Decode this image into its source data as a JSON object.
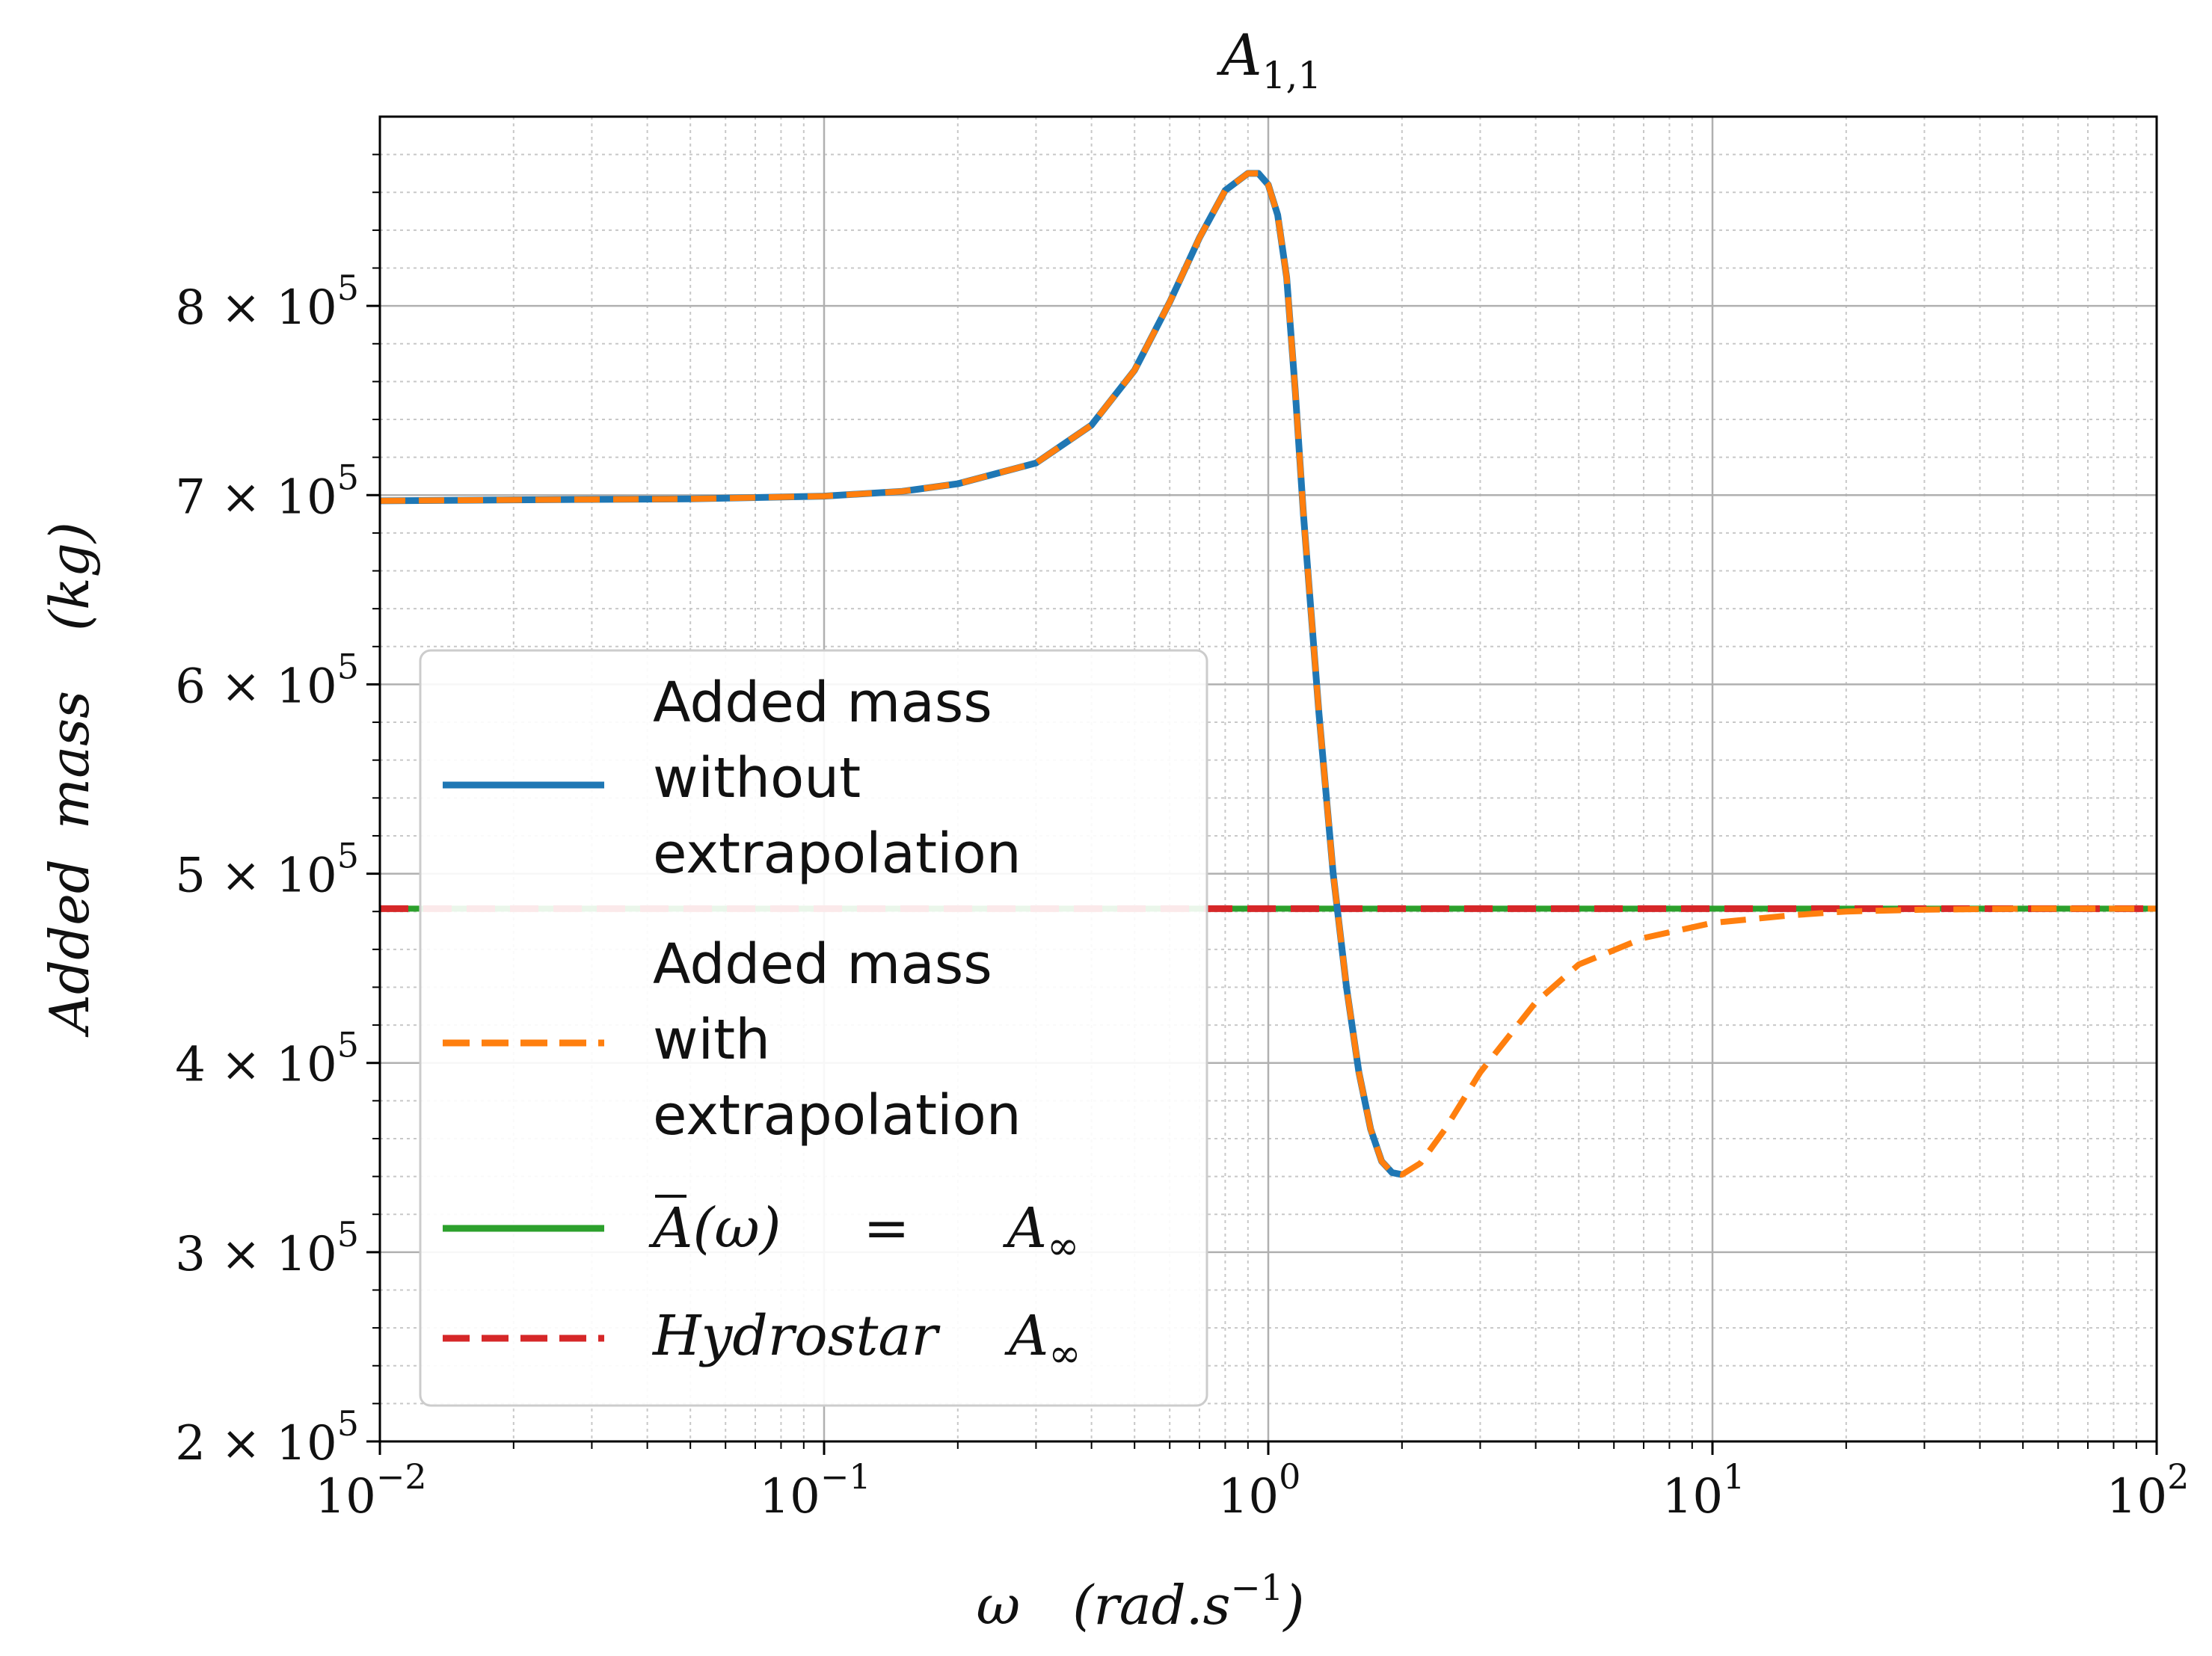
{
  "chart_data": {
    "type": "line",
    "title": {
      "base": "A",
      "sub": "1,1"
    },
    "xlabel": {
      "symbol": "ω",
      "unit": "(rad.s",
      "exp": "−1",
      "close": ")"
    },
    "ylabel": {
      "word1": "Added",
      "word2": "mass",
      "unit": "(kg)"
    },
    "xscale": "log",
    "xlim": [
      0.01,
      100
    ],
    "ylim": [
      200000,
      900000
    ],
    "grid": true,
    "legend_position": "center-left",
    "x_ticks": [
      {
        "value": 0.01,
        "base": "10",
        "exp": "−2"
      },
      {
        "value": 0.1,
        "base": "10",
        "exp": "−1"
      },
      {
        "value": 1,
        "base": "10",
        "exp": "0"
      },
      {
        "value": 10,
        "base": "10",
        "exp": "1"
      },
      {
        "value": 100,
        "base": "10",
        "exp": "2"
      }
    ],
    "y_ticks": [
      {
        "value": 200000,
        "mant": "2",
        "base": "10",
        "exp": "5"
      },
      {
        "value": 300000,
        "mant": "3",
        "base": "10",
        "exp": "5"
      },
      {
        "value": 400000,
        "mant": "4",
        "base": "10",
        "exp": "5"
      },
      {
        "value": 500000,
        "mant": "5",
        "base": "10",
        "exp": "5"
      },
      {
        "value": 600000,
        "mant": "6",
        "base": "10",
        "exp": "5"
      },
      {
        "value": 700000,
        "mant": "7",
        "base": "10",
        "exp": "5"
      },
      {
        "value": 800000,
        "mant": "8",
        "base": "10",
        "exp": "5"
      }
    ],
    "series": [
      {
        "name": "Added mass without extrapolation",
        "legend_lines": [
          "Added mass",
          "without",
          "extrapolation"
        ],
        "color": "#1f77b4",
        "style": "solid",
        "points": [
          [
            0.01,
            697000
          ],
          [
            0.02,
            697500
          ],
          [
            0.05,
            698000
          ],
          [
            0.1,
            699500
          ],
          [
            0.15,
            702000
          ],
          [
            0.2,
            706000
          ],
          [
            0.3,
            717000
          ],
          [
            0.4,
            737000
          ],
          [
            0.5,
            766000
          ],
          [
            0.6,
            802000
          ],
          [
            0.7,
            836000
          ],
          [
            0.8,
            861000
          ],
          [
            0.9,
            870000
          ],
          [
            0.95,
            870000
          ],
          [
            1.0,
            864000
          ],
          [
            1.05,
            848000
          ],
          [
            1.1,
            815000
          ],
          [
            1.15,
            755000
          ],
          [
            1.2,
            690000
          ],
          [
            1.3,
            585000
          ],
          [
            1.4,
            500000
          ],
          [
            1.5,
            440000
          ],
          [
            1.6,
            395000
          ],
          [
            1.7,
            365000
          ],
          [
            1.8,
            348000
          ],
          [
            1.9,
            342000
          ],
          [
            2.0,
            341000
          ]
        ]
      },
      {
        "name": "Added mass with extrapolation",
        "legend_lines": [
          "Added mass",
          "with",
          "extrapolation"
        ],
        "color": "#ff7f0e",
        "style": "dashed",
        "points": [
          [
            0.01,
            697000
          ],
          [
            0.02,
            697500
          ],
          [
            0.05,
            698000
          ],
          [
            0.1,
            699500
          ],
          [
            0.15,
            702000
          ],
          [
            0.2,
            706000
          ],
          [
            0.3,
            717000
          ],
          [
            0.4,
            737000
          ],
          [
            0.5,
            766000
          ],
          [
            0.6,
            802000
          ],
          [
            0.7,
            836000
          ],
          [
            0.8,
            861000
          ],
          [
            0.9,
            870000
          ],
          [
            0.95,
            870000
          ],
          [
            1.0,
            864000
          ],
          [
            1.05,
            848000
          ],
          [
            1.1,
            815000
          ],
          [
            1.15,
            755000
          ],
          [
            1.2,
            690000
          ],
          [
            1.3,
            585000
          ],
          [
            1.4,
            500000
          ],
          [
            1.5,
            440000
          ],
          [
            1.6,
            395000
          ],
          [
            1.7,
            365000
          ],
          [
            1.8,
            348000
          ],
          [
            1.9,
            342000
          ],
          [
            2.0,
            341000
          ],
          [
            2.2,
            347000
          ],
          [
            2.5,
            365000
          ],
          [
            3.0,
            395000
          ],
          [
            4.0,
            432000
          ],
          [
            5.0,
            452000
          ],
          [
            7.0,
            466000
          ],
          [
            10.0,
            474000
          ],
          [
            15.0,
            478000
          ],
          [
            20.0,
            480000
          ],
          [
            30.0,
            481000
          ],
          [
            50.0,
            481500
          ],
          [
            100.0,
            481500
          ]
        ]
      },
      {
        "name": "A(ω) = A∞",
        "legend_parts": {
          "a": "A",
          "omega": "(ω)",
          "eq": "=",
          "ainf": "A",
          "inf": "∞"
        },
        "color": "#2ca02c",
        "style": "solid",
        "points": [
          [
            0.01,
            481500
          ],
          [
            100,
            481500
          ]
        ]
      },
      {
        "name": "Hydrostar A∞",
        "legend_parts": {
          "word": "Hydrostar",
          "ainf": "A",
          "inf": "∞"
        },
        "color": "#d62728",
        "style": "dashed",
        "points": [
          [
            0.01,
            481500
          ],
          [
            100,
            481500
          ]
        ]
      }
    ]
  }
}
